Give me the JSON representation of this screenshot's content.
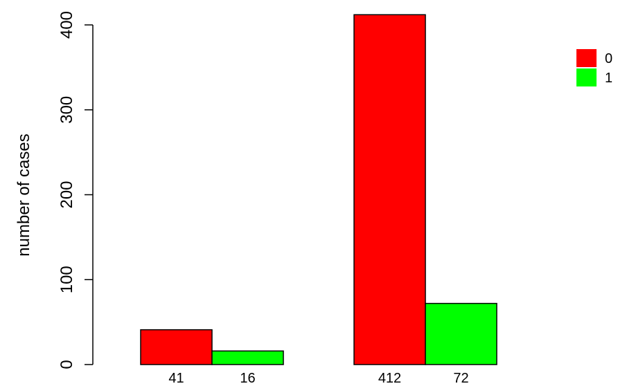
{
  "chart_data": {
    "type": "bar",
    "ylabel": "number of cases",
    "ylim": [
      0,
      400
    ],
    "yticks": [
      0,
      100,
      200,
      300,
      400
    ],
    "groups": [
      {
        "bars": [
          {
            "series": "0",
            "value": 41,
            "label": "41"
          },
          {
            "series": "1",
            "value": 16,
            "label": "16"
          }
        ]
      },
      {
        "bars": [
          {
            "series": "0",
            "value": 412,
            "label": "412"
          },
          {
            "series": "1",
            "value": 72,
            "label": "72"
          }
        ]
      }
    ],
    "series": [
      {
        "name": "0",
        "color": "#ff0000",
        "values": [
          41,
          412
        ]
      },
      {
        "name": "1",
        "color": "#00ff00",
        "values": [
          16,
          72
        ]
      }
    ],
    "legend_position": "top-right",
    "grid": false
  }
}
